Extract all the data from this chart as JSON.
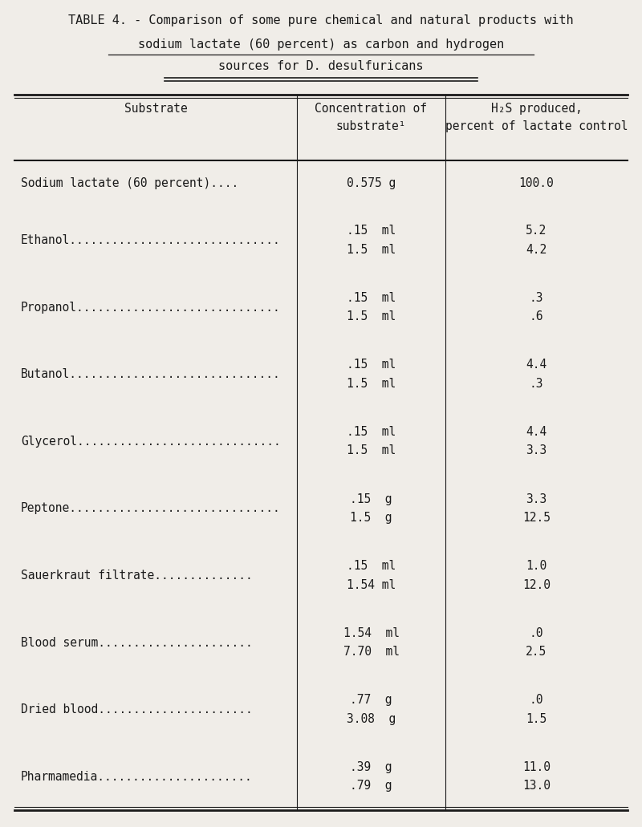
{
  "title_line1": "TABLE 4. - Comparison of some pure chemical and natural products with",
  "title_line2": "sodium lactate (60 percent) as carbon and hydrogen",
  "title_line3": "sources for D. desulfuricans",
  "rows": [
    {
      "substrate": "Sodium lactate (60 percent)....",
      "conc_lines": [
        "0.575 g"
      ],
      "h2s_lines": [
        "100.0"
      ]
    },
    {
      "substrate": "Ethanol..............................",
      "conc_lines": [
        ".15  ml",
        "1.5  ml"
      ],
      "h2s_lines": [
        "5.2",
        "4.2"
      ]
    },
    {
      "substrate": "Propanol.............................",
      "conc_lines": [
        ".15  ml",
        "1.5  ml"
      ],
      "h2s_lines": [
        ".3",
        ".6"
      ]
    },
    {
      "substrate": "Butanol..............................",
      "conc_lines": [
        ".15  ml",
        "1.5  ml"
      ],
      "h2s_lines": [
        "4.4",
        ".3"
      ]
    },
    {
      "substrate": "Glycerol.............................",
      "conc_lines": [
        ".15  ml",
        "1.5  ml"
      ],
      "h2s_lines": [
        "4.4",
        "3.3"
      ]
    },
    {
      "substrate": "Peptone..............................",
      "conc_lines": [
        ".15  g",
        "1.5  g"
      ],
      "h2s_lines": [
        "3.3",
        "12.5"
      ]
    },
    {
      "substrate": "Sauerkraut filtrate..............",
      "conc_lines": [
        ".15  ml",
        "1.54 ml"
      ],
      "h2s_lines": [
        "1.0",
        "12.0"
      ]
    },
    {
      "substrate": "Blood serum......................",
      "conc_lines": [
        "1.54  ml",
        "7.70  ml"
      ],
      "h2s_lines": [
        ".0",
        "2.5"
      ]
    },
    {
      "substrate": "Dried blood......................",
      "conc_lines": [
        ".77  g",
        "3.08  g"
      ],
      "h2s_lines": [
        ".0",
        "1.5"
      ]
    },
    {
      "substrate": "Pharmamedia......................",
      "conc_lines": [
        ".39  g",
        ".79  g"
      ],
      "h2s_lines": [
        "11.0",
        "13.0"
      ]
    }
  ],
  "bg_color": "#f0ede8",
  "text_color": "#1a1a1a",
  "line_color": "#1a1a1a",
  "font_size": 10.5,
  "title_font_size": 11.0,
  "header_font_size": 10.5
}
